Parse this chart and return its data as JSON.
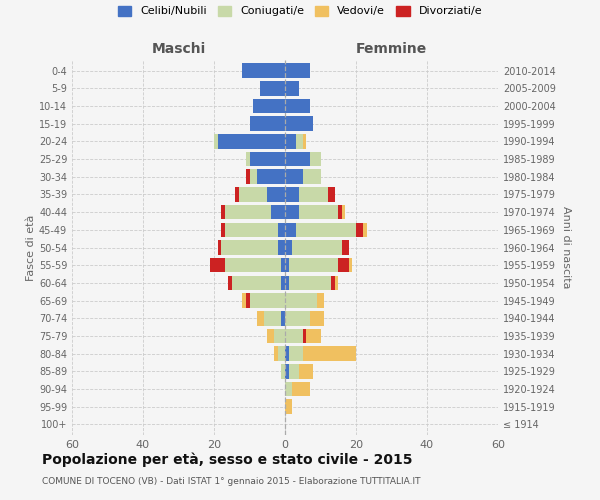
{
  "age_groups": [
    "100+",
    "95-99",
    "90-94",
    "85-89",
    "80-84",
    "75-79",
    "70-74",
    "65-69",
    "60-64",
    "55-59",
    "50-54",
    "45-49",
    "40-44",
    "35-39",
    "30-34",
    "25-29",
    "20-24",
    "15-19",
    "10-14",
    "5-9",
    "0-4"
  ],
  "birth_years": [
    "≤ 1914",
    "1915-1919",
    "1920-1924",
    "1925-1929",
    "1930-1934",
    "1935-1939",
    "1940-1944",
    "1945-1949",
    "1950-1954",
    "1955-1959",
    "1960-1964",
    "1965-1969",
    "1970-1974",
    "1975-1979",
    "1980-1984",
    "1985-1989",
    "1990-1994",
    "1995-1999",
    "2000-2004",
    "2005-2009",
    "2010-2014"
  ],
  "maschi": {
    "celibi": [
      0,
      0,
      0,
      0,
      0,
      0,
      1,
      0,
      1,
      1,
      2,
      2,
      4,
      5,
      8,
      10,
      19,
      10,
      9,
      7,
      12
    ],
    "coniugati": [
      0,
      0,
      0,
      1,
      2,
      3,
      5,
      10,
      14,
      16,
      16,
      15,
      13,
      8,
      2,
      1,
      1,
      0,
      0,
      0,
      0
    ],
    "vedovi": [
      0,
      0,
      0,
      0,
      1,
      2,
      2,
      1,
      0,
      0,
      0,
      0,
      0,
      0,
      0,
      0,
      0,
      0,
      0,
      0,
      0
    ],
    "divorziati": [
      0,
      0,
      0,
      0,
      0,
      0,
      0,
      1,
      1,
      4,
      1,
      1,
      1,
      1,
      1,
      0,
      0,
      0,
      0,
      0,
      0
    ]
  },
  "femmine": {
    "nubili": [
      0,
      0,
      0,
      1,
      1,
      0,
      0,
      0,
      1,
      1,
      2,
      3,
      4,
      4,
      5,
      7,
      3,
      8,
      7,
      4,
      7
    ],
    "coniugate": [
      0,
      0,
      2,
      3,
      4,
      5,
      7,
      9,
      12,
      14,
      14,
      17,
      11,
      8,
      5,
      3,
      2,
      0,
      0,
      0,
      0
    ],
    "vedove": [
      0,
      2,
      5,
      4,
      15,
      4,
      4,
      2,
      1,
      1,
      0,
      1,
      1,
      0,
      0,
      0,
      1,
      0,
      0,
      0,
      0
    ],
    "divorziate": [
      0,
      0,
      0,
      0,
      0,
      1,
      0,
      0,
      1,
      3,
      2,
      2,
      1,
      2,
      0,
      0,
      0,
      0,
      0,
      0,
      0
    ]
  },
  "colors": {
    "celibi_nubili": "#4472c4",
    "coniugati_e": "#c8d9a8",
    "vedovi_e": "#f0c060",
    "divorziati_e": "#cc2222"
  },
  "xlim": 60,
  "title": "Popolazione per età, sesso e stato civile - 2015",
  "subtitle": "COMUNE DI TOCENO (VB) - Dati ISTAT 1° gennaio 2015 - Elaborazione TUTTITALIA.IT",
  "ylabel_left": "Fasce di età",
  "ylabel_right": "Anni di nascita",
  "xlabel_maschi": "Maschi",
  "xlabel_femmine": "Femmine",
  "legend_labels": [
    "Celibi/Nubili",
    "Coniugati/e",
    "Vedovi/e",
    "Divorziati/e"
  ],
  "background_color": "#f5f5f5",
  "grid_color": "#cccccc"
}
